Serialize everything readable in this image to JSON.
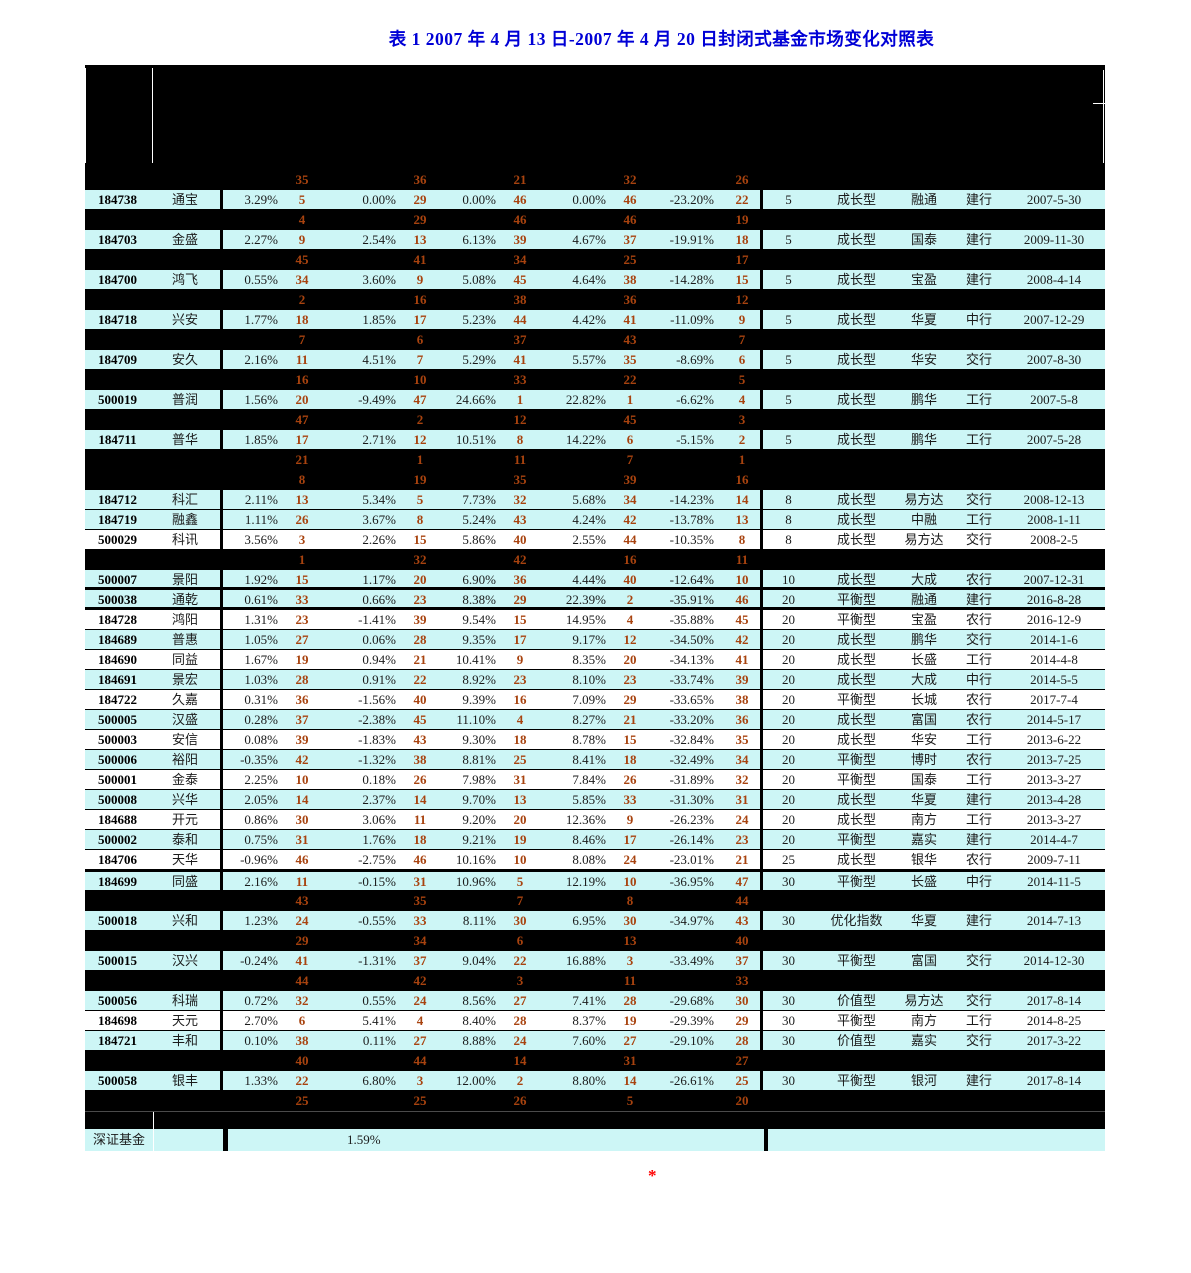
{
  "title": "表 1 2007 年 4 月 13 日-2007 年 4 月 20 日封闭式基金市场变化对照表",
  "colors": {
    "title_blue": "#0000d6",
    "row_cyan": "#cdf6f6",
    "rank_orange": "#a8430f",
    "row_black": "#000000",
    "asterisk_red": "#ff0000"
  },
  "summary": {
    "label": "深证基金",
    "value": "1.59%"
  },
  "footnote": {
    "asterisk": "*"
  },
  "table": {
    "rows": [
      {
        "kind": "ranks",
        "values": [
          "35",
          "36",
          "21",
          "32",
          "26"
        ]
      },
      {
        "kind": "fund",
        "bg": "cyan",
        "code": "184738",
        "name": "通宝",
        "pcts": [
          "3.29%",
          "0.00%",
          "0.00%",
          "0.00%",
          "-23.20%"
        ],
        "ranks": [
          "5",
          "29",
          "46",
          "46",
          "22"
        ],
        "years": "5",
        "type": "成长型",
        "company": "融通",
        "bank": "建行",
        "date": "2007-5-30"
      },
      {
        "kind": "ranks",
        "values": [
          "4",
          "29",
          "46",
          "46",
          "19"
        ]
      },
      {
        "kind": "fund",
        "bg": "cyan",
        "code": "184703",
        "name": "金盛",
        "pcts": [
          "2.27%",
          "2.54%",
          "6.13%",
          "4.67%",
          "-19.91%"
        ],
        "ranks": [
          "9",
          "13",
          "39",
          "37",
          "18"
        ],
        "years": "5",
        "type": "成长型",
        "company": "国泰",
        "bank": "建行",
        "date": "2009-11-30"
      },
      {
        "kind": "ranks",
        "values": [
          "45",
          "41",
          "34",
          "25",
          "17"
        ]
      },
      {
        "kind": "fund",
        "bg": "cyan",
        "code": "184700",
        "name": "鸿飞",
        "pcts": [
          "0.55%",
          "3.60%",
          "5.08%",
          "4.64%",
          "-14.28%"
        ],
        "ranks": [
          "34",
          "9",
          "45",
          "38",
          "15"
        ],
        "years": "5",
        "type": "成长型",
        "company": "宝盈",
        "bank": "建行",
        "date": "2008-4-14"
      },
      {
        "kind": "ranks",
        "values": [
          "2",
          "16",
          "38",
          "36",
          "12"
        ]
      },
      {
        "kind": "fund",
        "bg": "cyan",
        "code": "184718",
        "name": "兴安",
        "pcts": [
          "1.77%",
          "1.85%",
          "5.23%",
          "4.42%",
          "-11.09%"
        ],
        "ranks": [
          "18",
          "17",
          "44",
          "41",
          "9"
        ],
        "years": "5",
        "type": "成长型",
        "company": "华夏",
        "bank": "中行",
        "date": "2007-12-29"
      },
      {
        "kind": "ranks",
        "values": [
          "7",
          "6",
          "37",
          "43",
          "7"
        ]
      },
      {
        "kind": "fund",
        "bg": "cyan",
        "code": "184709",
        "name": "安久",
        "pcts": [
          "2.16%",
          "4.51%",
          "5.29%",
          "5.57%",
          "-8.69%"
        ],
        "ranks": [
          "11",
          "7",
          "41",
          "35",
          "6"
        ],
        "years": "5",
        "type": "成长型",
        "company": "华安",
        "bank": "交行",
        "date": "2007-8-30"
      },
      {
        "kind": "ranks",
        "values": [
          "16",
          "10",
          "33",
          "22",
          "5"
        ]
      },
      {
        "kind": "fund",
        "bg": "cyan",
        "code": "500019",
        "name": "普润",
        "pcts": [
          "1.56%",
          "-9.49%",
          "24.66%",
          "22.82%",
          "-6.62%"
        ],
        "ranks": [
          "20",
          "47",
          "1",
          "1",
          "4"
        ],
        "years": "5",
        "type": "成长型",
        "company": "鹏华",
        "bank": "工行",
        "date": "2007-5-8"
      },
      {
        "kind": "ranks",
        "values": [
          "47",
          "2",
          "12",
          "45",
          "3"
        ]
      },
      {
        "kind": "fund",
        "bg": "cyan",
        "code": "184711",
        "name": "普华",
        "pcts": [
          "1.85%",
          "2.71%",
          "10.51%",
          "14.22%",
          "-5.15%"
        ],
        "ranks": [
          "17",
          "12",
          "8",
          "6",
          "2"
        ],
        "years": "5",
        "type": "成长型",
        "company": "鹏华",
        "bank": "工行",
        "date": "2007-5-28"
      },
      {
        "kind": "ranks",
        "values": [
          "21",
          "1",
          "11",
          "7",
          "1"
        ]
      },
      {
        "kind": "ranks",
        "values": [
          "8",
          "19",
          "35",
          "39",
          "16"
        ]
      },
      {
        "kind": "fund",
        "bg": "cyan",
        "code": "184712",
        "name": "科汇",
        "pcts": [
          "2.11%",
          "5.34%",
          "7.73%",
          "5.68%",
          "-14.23%"
        ],
        "ranks": [
          "13",
          "5",
          "32",
          "34",
          "14"
        ],
        "years": "8",
        "type": "成长型",
        "company": "易方达",
        "bank": "交行",
        "date": "2008-12-13"
      },
      {
        "kind": "fund",
        "bg": "cyan",
        "code": "184719",
        "name": "融鑫",
        "pcts": [
          "1.11%",
          "3.67%",
          "5.24%",
          "4.24%",
          "-13.78%"
        ],
        "ranks": [
          "26",
          "8",
          "43",
          "42",
          "13"
        ],
        "years": "8",
        "type": "成长型",
        "company": "中融",
        "bank": "工行",
        "date": "2008-1-11"
      },
      {
        "kind": "fund",
        "bg": "white",
        "code": "500029",
        "name": "科讯",
        "pcts": [
          "3.56%",
          "2.26%",
          "5.86%",
          "2.55%",
          "-10.35%"
        ],
        "ranks": [
          "3",
          "15",
          "40",
          "44",
          "8"
        ],
        "years": "8",
        "type": "成长型",
        "company": "易方达",
        "bank": "交行",
        "date": "2008-2-5"
      },
      {
        "kind": "ranks",
        "values": [
          "1",
          "32",
          "42",
          "16",
          "11"
        ]
      },
      {
        "kind": "fund",
        "bg": "cyan",
        "border": "thick-bottom",
        "code": "500007",
        "name": "景阳",
        "pcts": [
          "1.92%",
          "1.17%",
          "6.90%",
          "4.44%",
          "-12.64%"
        ],
        "ranks": [
          "15",
          "20",
          "36",
          "40",
          "10"
        ],
        "years": "10",
        "type": "成长型",
        "company": "大成",
        "bank": "农行",
        "date": "2007-12-31"
      },
      {
        "kind": "fund",
        "bg": "cyan",
        "border": "thick-bottom",
        "code": "500038",
        "name": "通乾",
        "pcts": [
          "0.61%",
          "0.66%",
          "8.38%",
          "22.39%",
          "-35.91%"
        ],
        "ranks": [
          "33",
          "23",
          "29",
          "2",
          "46"
        ],
        "years": "20",
        "type": "平衡型",
        "company": "融通",
        "bank": "建行",
        "date": "2016-8-28"
      },
      {
        "kind": "fund",
        "bg": "white",
        "code": "184728",
        "name": "鸿阳",
        "pcts": [
          "1.31%",
          "-1.41%",
          "9.54%",
          "14.95%",
          "-35.88%"
        ],
        "ranks": [
          "23",
          "39",
          "15",
          "4",
          "45"
        ],
        "years": "20",
        "type": "平衡型",
        "company": "宝盈",
        "bank": "农行",
        "date": "2016-12-9"
      },
      {
        "kind": "fund",
        "bg": "cyan",
        "code": "184689",
        "name": "普惠",
        "pcts": [
          "1.05%",
          "0.06%",
          "9.35%",
          "9.17%",
          "-34.50%"
        ],
        "ranks": [
          "27",
          "28",
          "17",
          "12",
          "42"
        ],
        "years": "20",
        "type": "成长型",
        "company": "鹏华",
        "bank": "交行",
        "date": "2014-1-6"
      },
      {
        "kind": "fund",
        "bg": "white",
        "code": "184690",
        "name": "同益",
        "pcts": [
          "1.67%",
          "0.94%",
          "10.41%",
          "8.35%",
          "-34.13%"
        ],
        "ranks": [
          "19",
          "21",
          "9",
          "20",
          "41"
        ],
        "years": "20",
        "type": "成长型",
        "company": "长盛",
        "bank": "工行",
        "date": "2014-4-8"
      },
      {
        "kind": "fund",
        "bg": "cyan",
        "code": "184691",
        "name": "景宏",
        "pcts": [
          "1.03%",
          "0.91%",
          "8.92%",
          "8.10%",
          "-33.74%"
        ],
        "ranks": [
          "28",
          "22",
          "23",
          "23",
          "39"
        ],
        "years": "20",
        "type": "成长型",
        "company": "大成",
        "bank": "中行",
        "date": "2014-5-5"
      },
      {
        "kind": "fund",
        "bg": "white",
        "code": "184722",
        "name": "久嘉",
        "pcts": [
          "0.31%",
          "-1.56%",
          "9.39%",
          "7.09%",
          "-33.65%"
        ],
        "ranks": [
          "36",
          "40",
          "16",
          "29",
          "38"
        ],
        "years": "20",
        "type": "平衡型",
        "company": "长城",
        "bank": "农行",
        "date": "2017-7-4"
      },
      {
        "kind": "fund",
        "bg": "cyan",
        "code": "500005",
        "name": "汉盛",
        "pcts": [
          "0.28%",
          "-2.38%",
          "11.10%",
          "8.27%",
          "-33.20%"
        ],
        "ranks": [
          "37",
          "45",
          "4",
          "21",
          "36"
        ],
        "years": "20",
        "type": "成长型",
        "company": "富国",
        "bank": "农行",
        "date": "2014-5-17"
      },
      {
        "kind": "fund",
        "bg": "white",
        "code": "500003",
        "name": "安信",
        "pcts": [
          "0.08%",
          "-1.83%",
          "9.30%",
          "8.78%",
          "-32.84%"
        ],
        "ranks": [
          "39",
          "43",
          "18",
          "15",
          "35"
        ],
        "years": "20",
        "type": "成长型",
        "company": "华安",
        "bank": "工行",
        "date": "2013-6-22"
      },
      {
        "kind": "fund",
        "bg": "cyan",
        "code": "500006",
        "name": "裕阳",
        "pcts": [
          "-0.35%",
          "-1.32%",
          "8.81%",
          "8.41%",
          "-32.49%"
        ],
        "ranks": [
          "42",
          "38",
          "25",
          "18",
          "34"
        ],
        "years": "20",
        "type": "平衡型",
        "company": "博时",
        "bank": "农行",
        "date": "2013-7-25"
      },
      {
        "kind": "fund",
        "bg": "white",
        "code": "500001",
        "name": "金泰",
        "pcts": [
          "2.25%",
          "0.18%",
          "7.98%",
          "7.84%",
          "-31.89%"
        ],
        "ranks": [
          "10",
          "26",
          "31",
          "26",
          "32"
        ],
        "years": "20",
        "type": "平衡型",
        "company": "国泰",
        "bank": "工行",
        "date": "2013-3-27"
      },
      {
        "kind": "fund",
        "bg": "cyan",
        "code": "500008",
        "name": "兴华",
        "pcts": [
          "2.05%",
          "2.37%",
          "9.70%",
          "5.85%",
          "-31.30%"
        ],
        "ranks": [
          "14",
          "14",
          "13",
          "33",
          "31"
        ],
        "years": "20",
        "type": "成长型",
        "company": "华夏",
        "bank": "建行",
        "date": "2013-4-28"
      },
      {
        "kind": "fund",
        "bg": "white",
        "code": "184688",
        "name": "开元",
        "pcts": [
          "0.86%",
          "3.06%",
          "9.20%",
          "12.36%",
          "-26.23%"
        ],
        "ranks": [
          "30",
          "11",
          "20",
          "9",
          "24"
        ],
        "years": "20",
        "type": "成长型",
        "company": "南方",
        "bank": "工行",
        "date": "2013-3-27"
      },
      {
        "kind": "fund",
        "bg": "cyan",
        "code": "500002",
        "name": "泰和",
        "pcts": [
          "0.75%",
          "1.76%",
          "9.21%",
          "8.46%",
          "-26.14%"
        ],
        "ranks": [
          "31",
          "18",
          "19",
          "17",
          "23"
        ],
        "years": "20",
        "type": "平衡型",
        "company": "嘉实",
        "bank": "建行",
        "date": "2014-4-7"
      },
      {
        "kind": "fund",
        "bg": "white",
        "code": "184706",
        "name": "天华",
        "pcts": [
          "-0.96%",
          "-2.75%",
          "10.16%",
          "8.08%",
          "-23.01%"
        ],
        "ranks": [
          "46",
          "46",
          "10",
          "24",
          "21"
        ],
        "years": "25",
        "type": "成长型",
        "company": "银华",
        "bank": "农行",
        "date": "2009-7-11"
      },
      {
        "kind": "fund",
        "bg": "cyan",
        "border": "thick-top",
        "code": "184699",
        "name": "同盛",
        "pcts": [
          "2.16%",
          "-0.15%",
          "10.96%",
          "12.19%",
          "-36.95%"
        ],
        "ranks": [
          "11",
          "31",
          "5",
          "10",
          "47"
        ],
        "years": "30",
        "type": "平衡型",
        "company": "长盛",
        "bank": "中行",
        "date": "2014-11-5"
      },
      {
        "kind": "ranks",
        "values": [
          "43",
          "35",
          "7",
          "8",
          "44"
        ]
      },
      {
        "kind": "fund",
        "bg": "cyan",
        "code": "500018",
        "name": "兴和",
        "pcts": [
          "1.23%",
          "-0.55%",
          "8.11%",
          "6.95%",
          "-34.97%"
        ],
        "ranks": [
          "24",
          "33",
          "30",
          "30",
          "43"
        ],
        "years": "30",
        "type": "优化指数",
        "company": "华夏",
        "bank": "建行",
        "date": "2014-7-13"
      },
      {
        "kind": "ranks",
        "values": [
          "29",
          "34",
          "6",
          "13",
          "40"
        ]
      },
      {
        "kind": "fund",
        "bg": "cyan",
        "code": "500015",
        "name": "汉兴",
        "pcts": [
          "-0.24%",
          "-1.31%",
          "9.04%",
          "16.88%",
          "-33.49%"
        ],
        "ranks": [
          "41",
          "37",
          "22",
          "3",
          "37"
        ],
        "years": "30",
        "type": "平衡型",
        "company": "富国",
        "bank": "交行",
        "date": "2014-12-30"
      },
      {
        "kind": "ranks",
        "values": [
          "44",
          "42",
          "3",
          "11",
          "33"
        ]
      },
      {
        "kind": "fund",
        "bg": "cyan",
        "code": "500056",
        "name": "科瑞",
        "pcts": [
          "0.72%",
          "0.55%",
          "8.56%",
          "7.41%",
          "-29.68%"
        ],
        "ranks": [
          "32",
          "24",
          "27",
          "28",
          "30"
        ],
        "years": "30",
        "type": "价值型",
        "company": "易方达",
        "bank": "交行",
        "date": "2017-8-14"
      },
      {
        "kind": "fund",
        "bg": "white",
        "code": "184698",
        "name": "天元",
        "pcts": [
          "2.70%",
          "5.41%",
          "8.40%",
          "8.37%",
          "-29.39%"
        ],
        "ranks": [
          "6",
          "4",
          "28",
          "19",
          "29"
        ],
        "years": "30",
        "type": "平衡型",
        "company": "南方",
        "bank": "工行",
        "date": "2014-8-25"
      },
      {
        "kind": "fund",
        "bg": "cyan",
        "code": "184721",
        "name": "丰和",
        "pcts": [
          "0.10%",
          "0.11%",
          "8.88%",
          "7.60%",
          "-29.10%"
        ],
        "ranks": [
          "38",
          "27",
          "24",
          "27",
          "28"
        ],
        "years": "30",
        "type": "价值型",
        "company": "嘉实",
        "bank": "交行",
        "date": "2017-3-22"
      },
      {
        "kind": "ranks",
        "values": [
          "40",
          "44",
          "14",
          "31",
          "27"
        ]
      },
      {
        "kind": "fund",
        "bg": "cyan",
        "code": "500058",
        "name": "银丰",
        "pcts": [
          "1.33%",
          "6.80%",
          "12.00%",
          "8.80%",
          "-26.61%"
        ],
        "ranks": [
          "22",
          "3",
          "2",
          "14",
          "25"
        ],
        "years": "30",
        "type": "平衡型",
        "company": "银河",
        "bank": "建行",
        "date": "2017-8-14"
      },
      {
        "kind": "ranks",
        "values": [
          "25",
          "25",
          "26",
          "5",
          "20"
        ]
      },
      {
        "kind": "blank"
      }
    ]
  }
}
